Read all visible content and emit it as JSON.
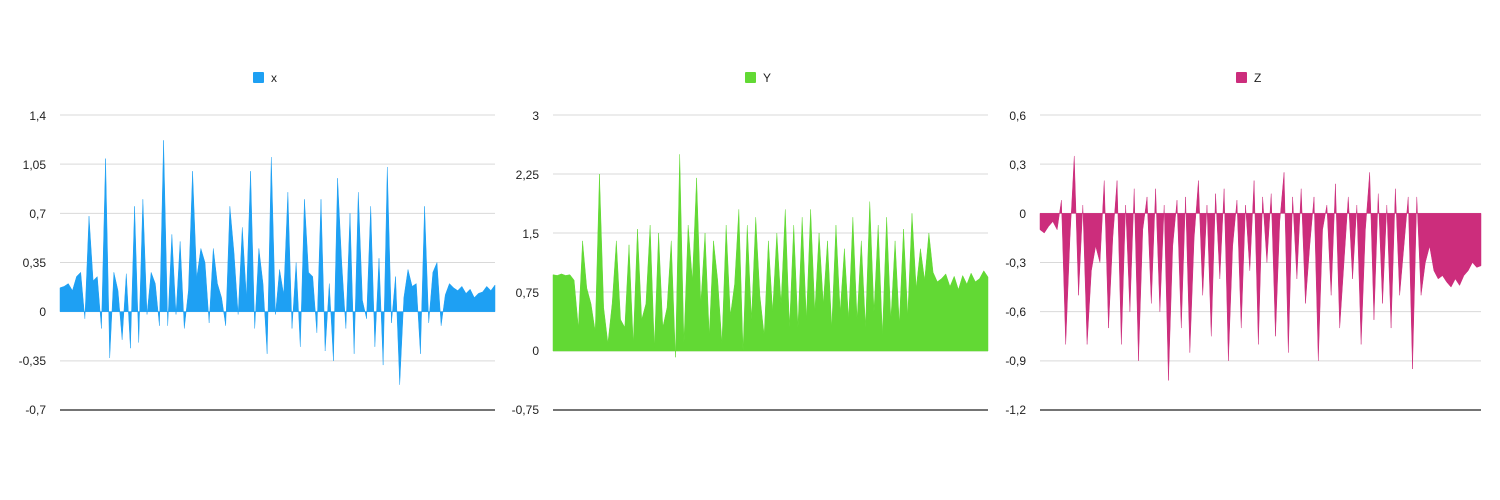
{
  "charts": [
    {
      "legend": "x",
      "color": "#1ea0f3",
      "ticks": [
        "1,4",
        "1,05",
        "0,7",
        "0,35",
        "0",
        "-0,35",
        "-0,7"
      ]
    },
    {
      "legend": "Y",
      "color": "#62d934",
      "ticks": [
        "3",
        "2,25",
        "1,5",
        "0,75",
        "0",
        "-0,75"
      ]
    },
    {
      "legend": "Z",
      "color": "#cc2d7c",
      "ticks": [
        "0,6",
        "0,3",
        "0",
        "-0,3",
        "-0,6",
        "-0,9",
        "-1,2"
      ]
    }
  ],
  "chart_data": [
    {
      "type": "area",
      "series": [
        {
          "name": "x",
          "values": [
            0.17,
            0.18,
            0.2,
            0.15,
            0.25,
            0.28,
            -0.05,
            0.68,
            0.22,
            0.25,
            -0.12,
            1.09,
            -0.33,
            0.28,
            0.15,
            -0.2,
            0.27,
            -0.26,
            0.75,
            -0.22,
            0.8,
            -0.02,
            0.28,
            0.2,
            -0.1,
            1.22,
            -0.1,
            0.55,
            -0.02,
            0.5,
            -0.12,
            0.15,
            1.0,
            0.24,
            0.45,
            0.35,
            -0.08,
            0.45,
            0.2,
            0.1,
            -0.1,
            0.75,
            0.42,
            -0.02,
            0.6,
            0.1,
            1.0,
            -0.12,
            0.45,
            0.2,
            -0.3,
            1.1,
            -0.02,
            0.3,
            0.12,
            0.85,
            -0.12,
            0.35,
            -0.25,
            0.8,
            0.28,
            0.25,
            -0.15,
            0.8,
            -0.28,
            0.2,
            -0.35,
            0.95,
            0.35,
            -0.12,
            0.7,
            -0.3,
            0.85,
            0.08,
            -0.05,
            0.75,
            -0.25,
            0.38,
            -0.38,
            1.03,
            -0.08,
            0.25,
            -0.52,
            0.1,
            0.3,
            0.18,
            0.2,
            -0.3,
            0.75,
            -0.08,
            0.28,
            0.35,
            -0.1,
            0.12,
            0.2,
            0.17,
            0.15,
            0.18,
            0.13,
            0.16,
            0.1,
            0.13,
            0.14,
            0.18,
            0.15,
            0.19
          ]
        }
      ],
      "ylim": [
        -0.7,
        1.4
      ]
    },
    {
      "type": "area",
      "series": [
        {
          "name": "Y",
          "values": [
            0.97,
            0.96,
            0.98,
            0.96,
            0.97,
            0.9,
            0.3,
            1.4,
            0.8,
            0.6,
            0.25,
            2.25,
            0.55,
            0.1,
            0.6,
            1.4,
            0.4,
            0.3,
            1.35,
            0.1,
            1.55,
            0.4,
            0.6,
            1.6,
            0.05,
            1.5,
            0.3,
            0.55,
            1.4,
            -0.08,
            2.5,
            0.1,
            1.6,
            0.9,
            2.2,
            0.6,
            1.5,
            0.2,
            1.4,
            0.9,
            0.1,
            1.6,
            0.45,
            0.85,
            1.8,
            0.0,
            1.6,
            0.4,
            1.7,
            0.7,
            0.2,
            1.4,
            0.5,
            1.5,
            0.6,
            1.8,
            0.3,
            1.6,
            0.3,
            1.7,
            0.4,
            1.8,
            0.5,
            1.5,
            0.6,
            1.4,
            0.3,
            1.6,
            0.5,
            1.3,
            0.4,
            1.7,
            0.4,
            1.4,
            0.3,
            1.9,
            0.5,
            1.6,
            0.2,
            1.7,
            0.4,
            1.4,
            0.35,
            1.55,
            0.45,
            1.75,
            0.8,
            1.3,
            0.9,
            1.5,
            1.0,
            0.88,
            0.92,
            0.98,
            0.82,
            0.95,
            0.78,
            0.96,
            0.85,
            0.99,
            0.88,
            0.92,
            1.02,
            0.94
          ]
        }
      ],
      "ylim": [
        -0.75,
        3
      ]
    },
    {
      "type": "area",
      "series": [
        {
          "name": "Z",
          "values": [
            -0.1,
            -0.12,
            -0.08,
            -0.05,
            -0.1,
            0.08,
            -0.8,
            -0.15,
            0.35,
            -0.5,
            0.05,
            -0.8,
            -0.35,
            -0.2,
            -0.3,
            0.2,
            -0.7,
            -0.15,
            0.2,
            -0.8,
            0.05,
            -0.6,
            0.15,
            -0.9,
            -0.1,
            0.1,
            -0.55,
            0.15,
            -0.6,
            0.05,
            -1.02,
            -0.2,
            0.08,
            -0.7,
            0.1,
            -0.85,
            -0.15,
            0.2,
            -0.5,
            0.05,
            -0.75,
            0.12,
            -0.4,
            0.15,
            -0.9,
            -0.2,
            0.08,
            -0.7,
            0.05,
            -0.35,
            0.2,
            -0.8,
            0.1,
            -0.3,
            0.12,
            -0.75,
            -0.05,
            0.25,
            -0.85,
            0.1,
            -0.4,
            0.15,
            -0.55,
            -0.2,
            0.1,
            -0.9,
            -0.1,
            0.05,
            -0.5,
            0.18,
            -0.7,
            -0.3,
            0.1,
            -0.4,
            0.05,
            -0.8,
            -0.1,
            0.25,
            -0.65,
            0.12,
            -0.55,
            0.05,
            -0.7,
            0.15,
            -0.5,
            -0.2,
            0.1,
            -0.95,
            0.1,
            -0.5,
            -0.3,
            -0.2,
            -0.35,
            -0.4,
            -0.38,
            -0.42,
            -0.45,
            -0.4,
            -0.44,
            -0.38,
            -0.35,
            -0.3,
            -0.33,
            -0.32
          ]
        }
      ],
      "ylim": [
        -1.2,
        0.6
      ]
    }
  ]
}
